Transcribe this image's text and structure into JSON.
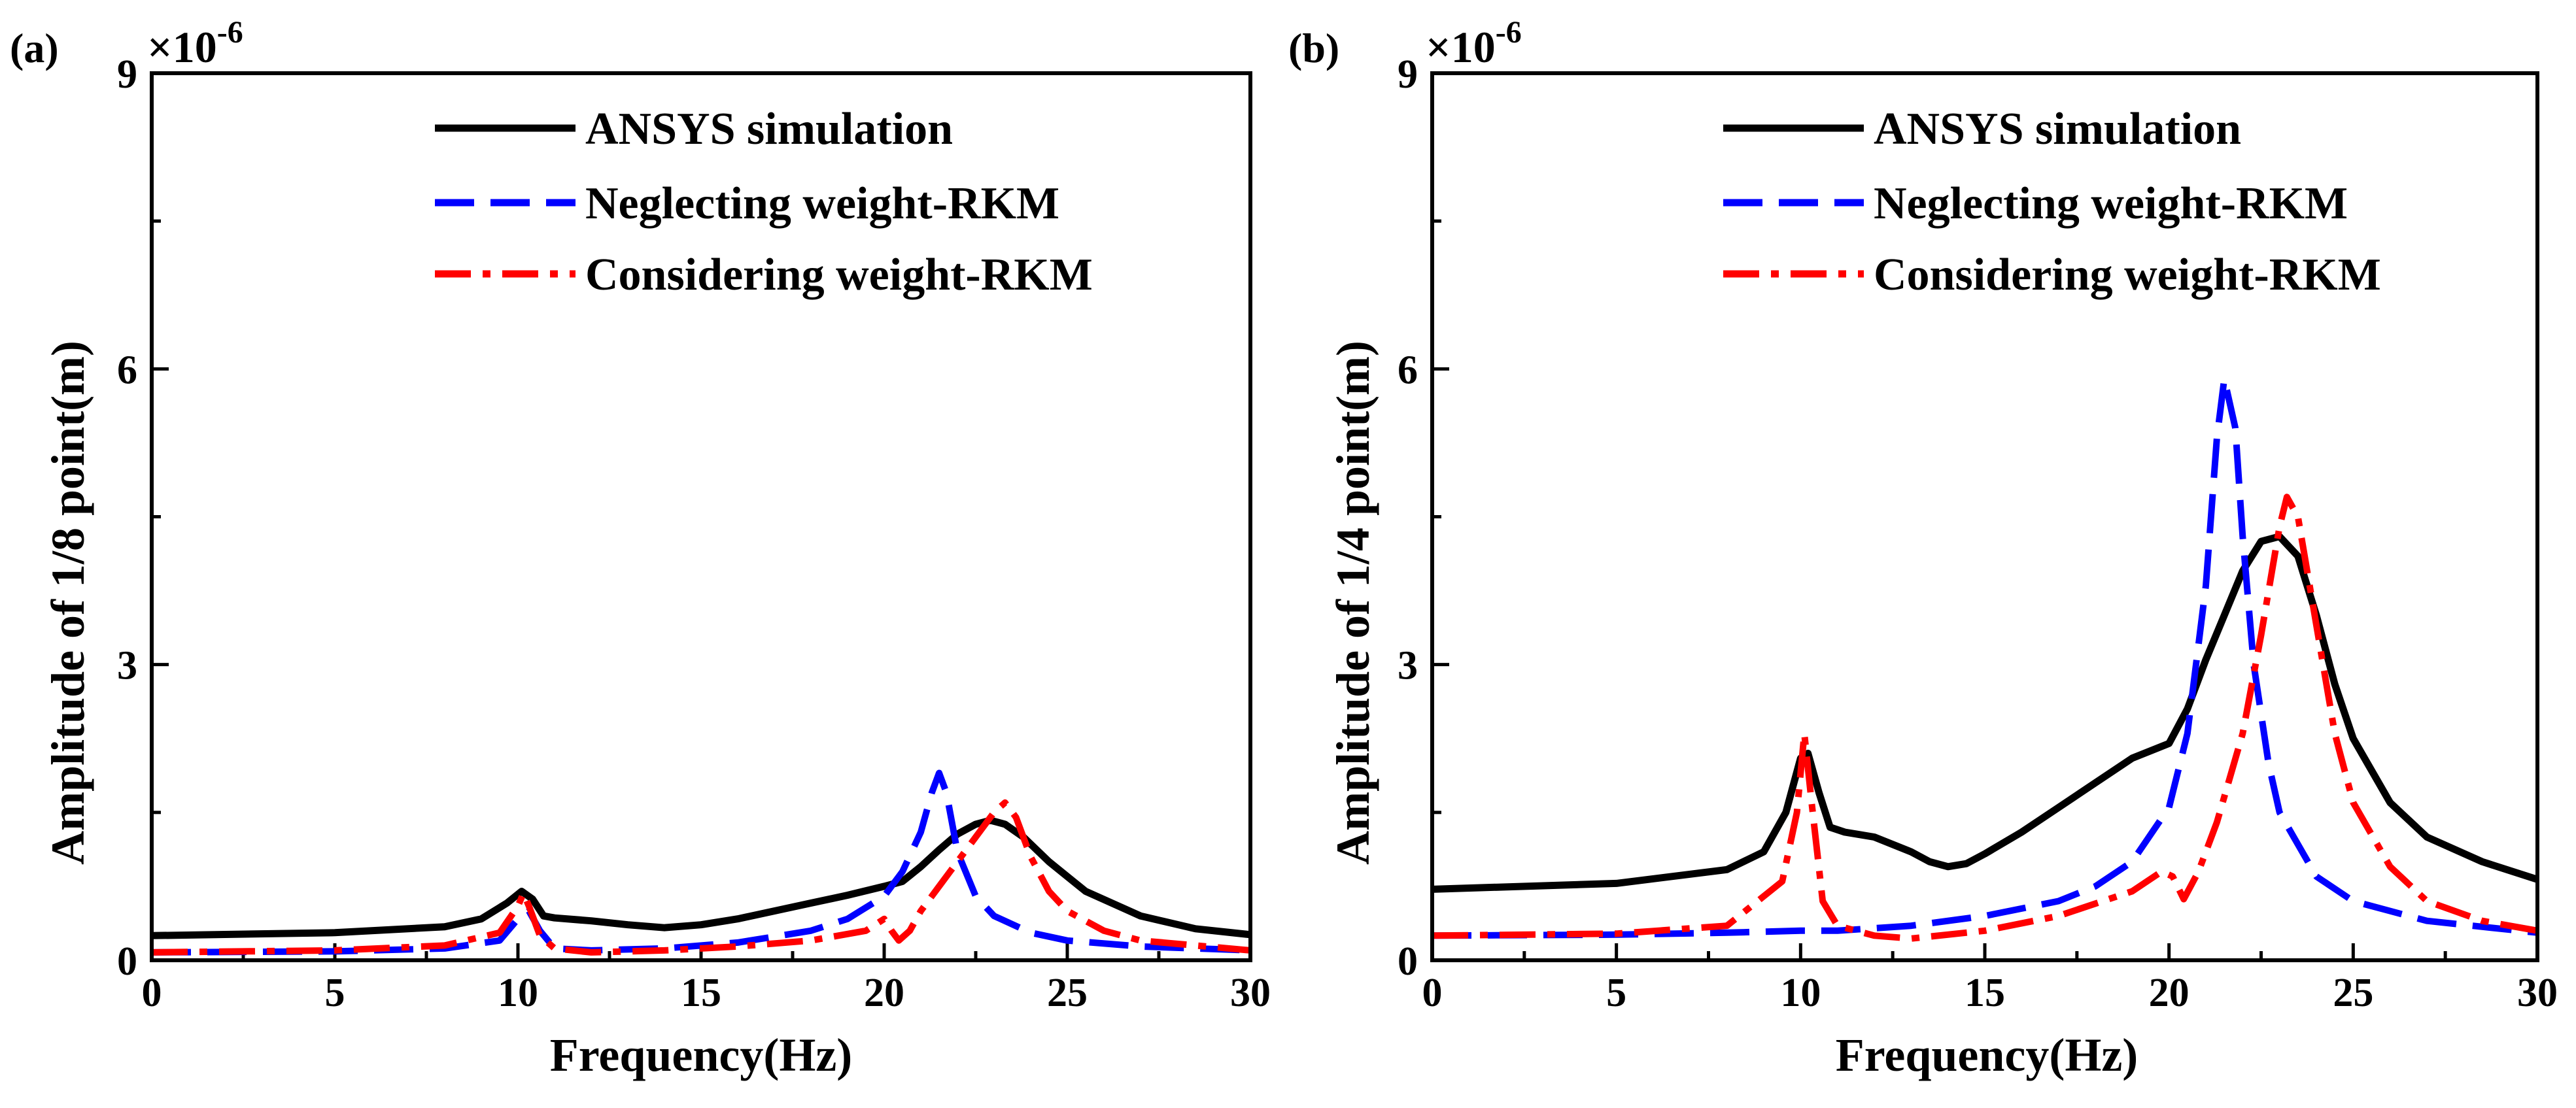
{
  "colors": {
    "ansys": "#000000",
    "neglecting": "#0000ff",
    "considering": "#ff0000"
  },
  "chart_data": [
    {
      "panel_label": "(a)",
      "type": "line",
      "xlabel": "Frequency(Hz)",
      "ylabel": "Amplitude of 1/8 point(m)",
      "xlim": [
        0,
        30
      ],
      "ylim": [
        0,
        9
      ],
      "y_scale_label": "×10",
      "y_scale_exponent": "-6",
      "xticks": [
        "0",
        "5",
        "10",
        "15",
        "20",
        "25",
        "30"
      ],
      "yticks": [
        "0",
        "3",
        "6",
        "9"
      ],
      "legend": [
        "ANSYS simulation",
        "Neglecting weight-RKM",
        "Considering weight-RKM"
      ],
      "series": [
        {
          "name": "ANSYS simulation",
          "style": "solid",
          "x": [
            0,
            5,
            8,
            9,
            9.7,
            10.1,
            10.4,
            10.7,
            11,
            12,
            13,
            14,
            15,
            16,
            17,
            18,
            19,
            20,
            20.5,
            21,
            21.5,
            22,
            22.5,
            22.9,
            23.3,
            23.8,
            24.5,
            25.5,
            27,
            28.5,
            30
          ],
          "y": [
            0.25,
            0.28,
            0.34,
            0.42,
            0.58,
            0.7,
            0.62,
            0.45,
            0.43,
            0.4,
            0.36,
            0.33,
            0.36,
            0.42,
            0.5,
            0.58,
            0.66,
            0.75,
            0.8,
            0.95,
            1.12,
            1.28,
            1.38,
            1.42,
            1.38,
            1.25,
            1.0,
            0.7,
            0.45,
            0.32,
            0.26
          ]
        },
        {
          "name": "Neglecting weight-RKM",
          "style": "dashed",
          "x": [
            0,
            5,
            8,
            9.5,
            10,
            10.3,
            10.6,
            11,
            12,
            14,
            16,
            18,
            19,
            20,
            20.5,
            21,
            21.3,
            21.5,
            21.7,
            22,
            22.5,
            23,
            24,
            25,
            27,
            30
          ],
          "y": [
            0.08,
            0.09,
            0.12,
            0.2,
            0.42,
            0.5,
            0.3,
            0.12,
            0.1,
            0.12,
            0.18,
            0.3,
            0.42,
            0.65,
            0.9,
            1.3,
            1.7,
            1.9,
            1.7,
            1.1,
            0.65,
            0.45,
            0.28,
            0.2,
            0.14,
            0.1
          ]
        },
        {
          "name": "Considering weight-RKM",
          "style": "dashdot",
          "x": [
            0,
            5,
            8,
            9.5,
            10,
            10.15,
            10.3,
            10.6,
            11,
            12,
            14,
            16,
            18,
            19.5,
            20,
            20.2,
            20.4,
            20.7,
            21,
            21.5,
            22,
            22.5,
            23,
            23.3,
            23.6,
            24,
            24.5,
            25,
            26,
            27,
            30
          ],
          "y": [
            0.08,
            0.1,
            0.15,
            0.28,
            0.55,
            0.68,
            0.55,
            0.25,
            0.12,
            0.08,
            0.1,
            0.14,
            0.2,
            0.3,
            0.42,
            0.3,
            0.2,
            0.3,
            0.5,
            0.75,
            1.0,
            1.25,
            1.5,
            1.6,
            1.45,
            1.05,
            0.7,
            0.5,
            0.3,
            0.2,
            0.1
          ]
        }
      ]
    },
    {
      "panel_label": "(b)",
      "type": "line",
      "xlabel": "Frequency(Hz)",
      "ylabel": "Amplitude of 1/4 point(m)",
      "xlim": [
        0,
        30
      ],
      "ylim": [
        0,
        9
      ],
      "y_scale_label": "×10",
      "y_scale_exponent": "-6",
      "xticks": [
        "0",
        "5",
        "10",
        "15",
        "20",
        "25",
        "30"
      ],
      "yticks": [
        "0",
        "3",
        "6",
        "9"
      ],
      "legend": [
        "ANSYS simulation",
        "Neglecting weight-RKM",
        "Considering weight-RKM"
      ],
      "series": [
        {
          "name": "ANSYS simulation",
          "style": "solid",
          "x": [
            0,
            5,
            8,
            9,
            9.6,
            10,
            10.2,
            10.5,
            10.8,
            11.2,
            12,
            13,
            13.5,
            14,
            14.5,
            15,
            16,
            17,
            18,
            19,
            20,
            20.5,
            21,
            21.5,
            22,
            22.5,
            23,
            23.5,
            24,
            24.5,
            25,
            26,
            27,
            28.5,
            30
          ],
          "y": [
            0.72,
            0.78,
            0.92,
            1.1,
            1.5,
            2.05,
            2.1,
            1.7,
            1.35,
            1.3,
            1.25,
            1.1,
            1.0,
            0.95,
            0.98,
            1.08,
            1.3,
            1.55,
            1.8,
            2.05,
            2.2,
            2.55,
            3.05,
            3.5,
            3.95,
            4.25,
            4.3,
            4.1,
            3.5,
            2.8,
            2.25,
            1.6,
            1.25,
            1.0,
            0.82
          ]
        },
        {
          "name": "Neglecting weight-RKM",
          "style": "dashed",
          "x": [
            0,
            5,
            8,
            10,
            10.4,
            11,
            13,
            15,
            17,
            18,
            19,
            20,
            20.5,
            21,
            21.3,
            21.5,
            21.8,
            22,
            22.3,
            22.7,
            23,
            24,
            25,
            27,
            30
          ],
          "y": [
            0.25,
            0.26,
            0.28,
            0.3,
            0.3,
            0.3,
            0.35,
            0.45,
            0.6,
            0.75,
            1.0,
            1.55,
            2.3,
            3.8,
            5.3,
            5.9,
            5.4,
            4.3,
            3.0,
            2.0,
            1.5,
            0.85,
            0.6,
            0.4,
            0.28
          ]
        },
        {
          "name": "Considering weight-RKM",
          "style": "dashdot",
          "x": [
            0,
            5,
            8,
            9.5,
            9.9,
            10.1,
            10.3,
            10.6,
            11,
            12,
            13,
            15,
            17,
            19,
            19.8,
            20.1,
            20.4,
            20.8,
            21.3,
            22,
            22.5,
            23,
            23.2,
            23.5,
            24,
            24.5,
            25,
            26,
            27,
            28.5,
            30
          ],
          "y": [
            0.25,
            0.27,
            0.35,
            0.8,
            1.5,
            2.3,
            1.6,
            0.6,
            0.35,
            0.25,
            0.22,
            0.3,
            0.45,
            0.7,
            0.9,
            0.85,
            0.62,
            0.9,
            1.4,
            2.3,
            3.3,
            4.4,
            4.7,
            4.5,
            3.4,
            2.3,
            1.6,
            0.95,
            0.6,
            0.4,
            0.3
          ]
        }
      ]
    }
  ]
}
